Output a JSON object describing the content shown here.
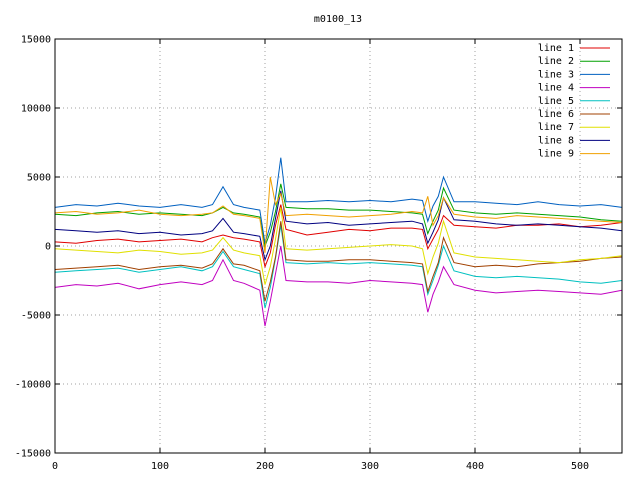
{
  "chart_data": {
    "type": "line",
    "title": "m0100_13",
    "xlabel": "",
    "ylabel": "",
    "xlim": [
      0,
      540
    ],
    "ylim": [
      -15000,
      15000
    ],
    "grid": true,
    "legend_position": "top-right",
    "x_ticks": [
      0,
      100,
      200,
      300,
      400,
      500
    ],
    "y_ticks": [
      -15000,
      -10000,
      -5000,
      0,
      5000,
      10000,
      15000
    ],
    "x": [
      0,
      20,
      40,
      60,
      80,
      100,
      120,
      140,
      150,
      160,
      170,
      180,
      195,
      200,
      205,
      210,
      215,
      220,
      240,
      260,
      280,
      300,
      320,
      340,
      350,
      355,
      360,
      365,
      370,
      380,
      400,
      420,
      440,
      460,
      480,
      500,
      520,
      540
    ],
    "series": [
      {
        "name": "line 1",
        "color": "#e00000",
        "values": [
          300,
          200,
          400,
          500,
          300,
          400,
          500,
          300,
          600,
          800,
          600,
          500,
          300,
          -1500,
          -500,
          1500,
          3000,
          1200,
          800,
          1000,
          1200,
          1100,
          1300,
          1300,
          1200,
          -200,
          500,
          1200,
          2200,
          1500,
          1400,
          1300,
          1500,
          1500,
          1600,
          1400,
          1500,
          1700
        ]
      },
      {
        "name": "line 2",
        "color": "#00a000",
        "values": [
          2300,
          2200,
          2400,
          2500,
          2300,
          2400,
          2300,
          2200,
          2400,
          2800,
          2400,
          2300,
          2100,
          0,
          1000,
          2500,
          4500,
          2800,
          2700,
          2700,
          2600,
          2600,
          2500,
          2400,
          2300,
          900,
          1800,
          2600,
          4200,
          2600,
          2400,
          2300,
          2400,
          2300,
          2200,
          2100,
          1900,
          1800
        ]
      },
      {
        "name": "line 3",
        "color": "#0060c0",
        "values": [
          2800,
          3000,
          2900,
          3100,
          2900,
          2800,
          3000,
          2800,
          3000,
          4300,
          3000,
          2800,
          2600,
          200,
          1500,
          3500,
          6400,
          3200,
          3200,
          3300,
          3200,
          3300,
          3200,
          3400,
          3300,
          1800,
          2900,
          3600,
          5000,
          3200,
          3200,
          3100,
          3000,
          3200,
          3000,
          2900,
          3000,
          2800
        ]
      },
      {
        "name": "line 4",
        "color": "#c000c0",
        "values": [
          -3000,
          -2800,
          -2900,
          -2700,
          -3100,
          -2800,
          -2600,
          -2800,
          -2500,
          -1000,
          -2500,
          -2700,
          -3200,
          -5800,
          -4000,
          -2000,
          0,
          -2500,
          -2600,
          -2600,
          -2700,
          -2500,
          -2600,
          -2700,
          -2800,
          -4800,
          -3500,
          -2600,
          -1500,
          -2800,
          -3200,
          -3400,
          -3300,
          -3200,
          -3300,
          -3400,
          -3500,
          -3200
        ]
      },
      {
        "name": "line 5",
        "color": "#00c0c0",
        "values": [
          -1900,
          -1800,
          -1700,
          -1600,
          -1900,
          -1700,
          -1500,
          -1800,
          -1500,
          -400,
          -1500,
          -1700,
          -2000,
          -4500,
          -3000,
          -900,
          1500,
          -1200,
          -1300,
          -1200,
          -1300,
          -1200,
          -1300,
          -1400,
          -1500,
          -3500,
          -2500,
          -1400,
          0,
          -1800,
          -2200,
          -2300,
          -2200,
          -2300,
          -2400,
          -2600,
          -2700,
          -2500
        ]
      },
      {
        "name": "line 6",
        "color": "#a04000",
        "values": [
          -1700,
          -1600,
          -1500,
          -1400,
          -1700,
          -1500,
          -1400,
          -1600,
          -1300,
          -200,
          -1300,
          -1400,
          -1800,
          -4000,
          -2600,
          -800,
          1800,
          -1000,
          -1100,
          -1100,
          -1000,
          -1000,
          -1100,
          -1200,
          -1300,
          -3300,
          -2200,
          -1200,
          600,
          -1200,
          -1500,
          -1400,
          -1500,
          -1300,
          -1200,
          -1100,
          -900,
          -800
        ]
      },
      {
        "name": "line 7",
        "color": "#e0e000",
        "values": [
          -200,
          -300,
          -400,
          -500,
          -300,
          -400,
          -600,
          -500,
          -300,
          600,
          -300,
          -500,
          -700,
          -2800,
          -1500,
          500,
          2800,
          -200,
          -300,
          -200,
          -100,
          0,
          100,
          0,
          -200,
          -2000,
          -800,
          200,
          1800,
          -500,
          -800,
          -900,
          -1000,
          -1100,
          -1200,
          -1000,
          -900,
          -700
        ]
      },
      {
        "name": "line 8",
        "color": "#000080",
        "values": [
          1200,
          1100,
          1000,
          1100,
          900,
          1000,
          800,
          900,
          1100,
          2000,
          1000,
          900,
          700,
          -1000,
          0,
          2000,
          4000,
          1800,
          1600,
          1700,
          1500,
          1600,
          1700,
          1800,
          1600,
          200,
          1000,
          1900,
          3500,
          1900,
          1800,
          1600,
          1500,
          1600,
          1500,
          1400,
          1300,
          1100
        ]
      },
      {
        "name": "line 9",
        "color": "#f0a000",
        "values": [
          2400,
          2500,
          2300,
          2400,
          2600,
          2300,
          2200,
          2300,
          2400,
          2900,
          2300,
          2200,
          2000,
          -500,
          5000,
          3000,
          3800,
          2200,
          2300,
          2200,
          2100,
          2200,
          2300,
          2500,
          2400,
          3600,
          1500,
          2200,
          3500,
          2300,
          2100,
          2000,
          2200,
          2100,
          2000,
          1900,
          1800,
          1700
        ]
      }
    ]
  }
}
